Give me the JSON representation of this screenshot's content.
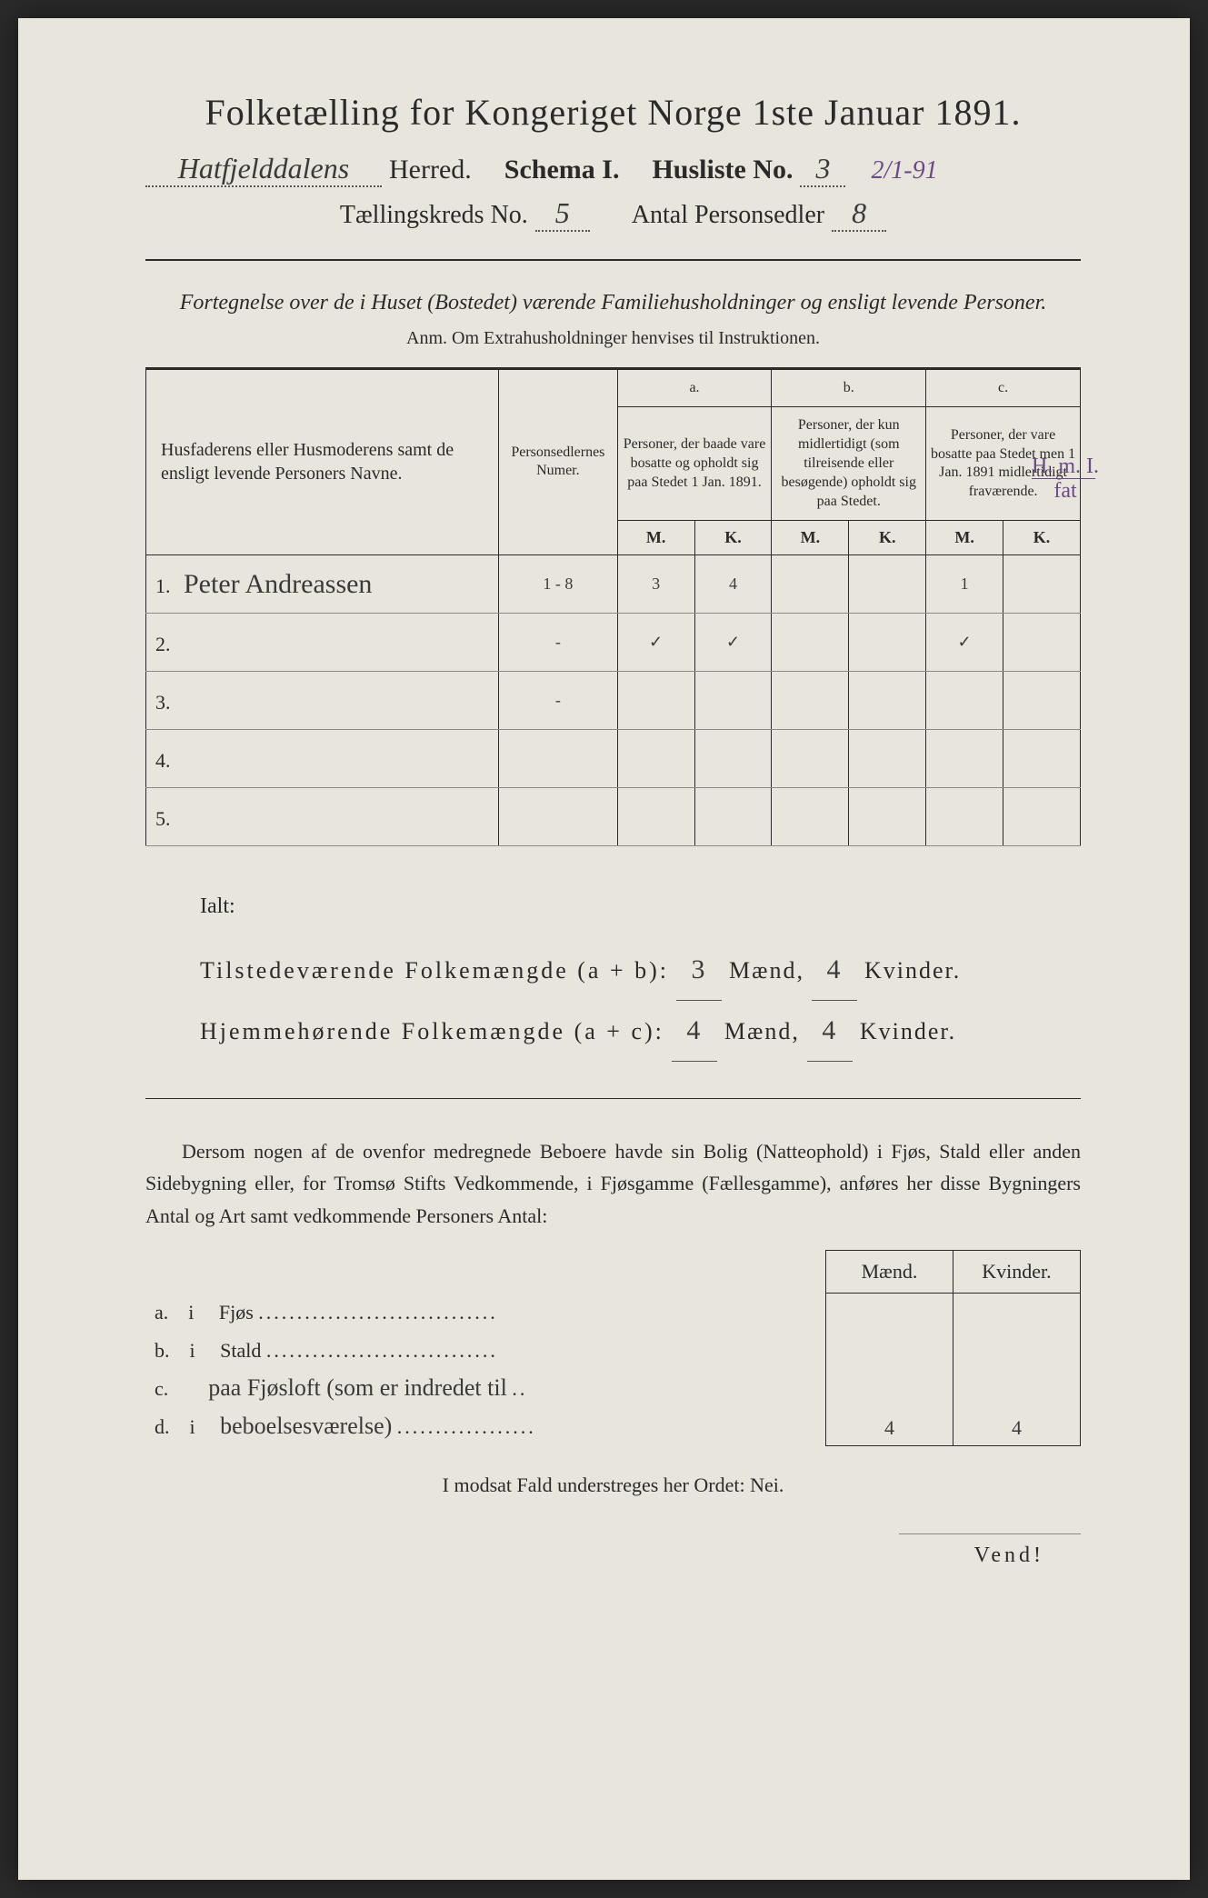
{
  "title": "Folketælling for Kongeriget Norge 1ste Januar 1891.",
  "header": {
    "herred_hw": "Hatfjelddalens",
    "herred_label": "Herred.",
    "schema_label": "Schema I.",
    "husliste_label": "Husliste No.",
    "husliste_no": "3",
    "date_hw": "2/1-91",
    "kreds_label": "Tællingskreds No.",
    "kreds_no": "5",
    "personsedler_label": "Antal Personsedler",
    "personsedler_no": "8"
  },
  "subtitle": "Fortegnelse over de i Huset (Bostedet) værende Familiehusholdninger og ensligt levende Personer.",
  "anm": "Anm. Om Extrahusholdninger henvises til Instruktionen.",
  "table": {
    "col_name": "Husfaderens eller Husmoderens samt de ensligt levende Personers Navne.",
    "col_num": "Personsedlernes Numer.",
    "col_a_label": "a.",
    "col_a": "Personer, der baade vare bosatte og opholdt sig paa Stedet 1 Jan. 1891.",
    "col_b_label": "b.",
    "col_b": "Personer, der kun midlertidigt (som tilreisende eller besøgende) opholdt sig paa Stedet.",
    "col_c_label": "c.",
    "col_c": "Personer, der vare bosatte paa Stedet men 1 Jan. 1891 midlertidigt fraværende.",
    "mk_m": "M.",
    "mk_k": "K.",
    "rows": [
      {
        "n": "1.",
        "name": "Peter Andreassen",
        "num": "1 - 8",
        "am": "3",
        "ak": "4",
        "bm": "",
        "bk": "",
        "cm": "1",
        "ck": ""
      },
      {
        "n": "2.",
        "name": "",
        "num": "-",
        "am": "✓",
        "ak": "✓",
        "bm": "",
        "bk": "",
        "cm": "✓",
        "ck": ""
      },
      {
        "n": "3.",
        "name": "",
        "num": "-",
        "am": "",
        "ak": "",
        "bm": "",
        "bk": "",
        "cm": "",
        "ck": ""
      },
      {
        "n": "4.",
        "name": "",
        "num": "",
        "am": "",
        "ak": "",
        "bm": "",
        "bk": "",
        "cm": "",
        "ck": ""
      },
      {
        "n": "5.",
        "name": "",
        "num": "",
        "am": "",
        "ak": "",
        "bm": "",
        "bk": "",
        "cm": "",
        "ck": ""
      }
    ],
    "margin_note_top": "H. m. I.",
    "margin_note_bot": "fat"
  },
  "totals": {
    "ialt": "Ialt:",
    "row1_label": "Tilstedeværende Folkemængde (a + b):",
    "row1_m": "3",
    "row1_k": "4",
    "row2_label": "Hjemmehørende Folkemængde (a + c):",
    "row2_m": "4",
    "row2_k": "4",
    "maend": "Mænd,",
    "kvinder": "Kvinder."
  },
  "para": "Dersom nogen af de ovenfor medregnede Beboere havde sin Bolig (Natteophold) i Fjøs, Stald eller anden Sidebygning eller, for Tromsø Stifts Vedkommende, i Fjøsgamme (Fællesgamme), anføres her disse Bygningers Antal og Art samt vedkommende Personers Antal:",
  "subtable": {
    "hdr_m": "Mænd.",
    "hdr_k": "Kvinder.",
    "rows": [
      {
        "l": "a.",
        "t": "i",
        "name": "Fjøs",
        "hw": "",
        "m": "",
        "k": ""
      },
      {
        "l": "b.",
        "t": "i",
        "name": "Stald",
        "hw": "",
        "m": "",
        "k": ""
      },
      {
        "l": "c.",
        "t": "",
        "name": "",
        "hw": "paa Fjøsloft (som er indredet til",
        "m": "",
        "k": ""
      },
      {
        "l": "d.",
        "t": "i",
        "name": "",
        "hw": "beboelsesværelse)",
        "m": "4",
        "k": "4"
      }
    ]
  },
  "nej": "I modsat Fald understreges her Ordet: Nei.",
  "vend": "Vend!"
}
